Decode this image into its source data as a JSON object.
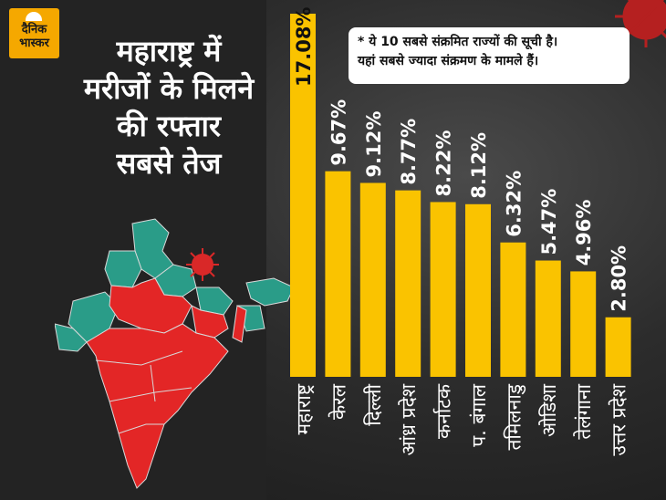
{
  "brand": {
    "line1": "दैनिक",
    "line2": "भास्कर"
  },
  "headline": [
    "महाराष्ट्र में",
    "मरीजों के मिलने",
    "की रफ्तार",
    "सबसे तेज"
  ],
  "note": [
    "* ये 10 सबसे संक्रमित राज्यों की सूची है।",
    "यहां सबसे ज्यादा संक्रमण के मामले हैं।"
  ],
  "colors": {
    "bar": "#fac300",
    "brand": "#f5a800",
    "map_red": "#e32626",
    "map_teal": "#2a9c88",
    "virus": "#d92828"
  },
  "chart_data": {
    "type": "bar",
    "categories": [
      "महाराष्ट्र",
      "केरल",
      "दिल्ली",
      "आंध्र प्रदेश",
      "कर्नाटक",
      "प. बंगाल",
      "तमिलनाडु",
      "ओडिशा",
      "तेलंगाना",
      "उत्तर प्रदेश"
    ],
    "values": [
      17.08,
      9.67,
      9.12,
      8.77,
      8.22,
      8.12,
      6.32,
      5.47,
      4.96,
      2.8
    ],
    "value_labels": [
      "17.08%",
      "9.67%",
      "9.12%",
      "8.77%",
      "8.22%",
      "8.12%",
      "6.32%",
      "5.47%",
      "4.96%",
      "2.80%"
    ],
    "unit": "%",
    "ylim": [
      0,
      17.08
    ],
    "grid": false,
    "title": "",
    "xlabel": "",
    "ylabel": ""
  }
}
